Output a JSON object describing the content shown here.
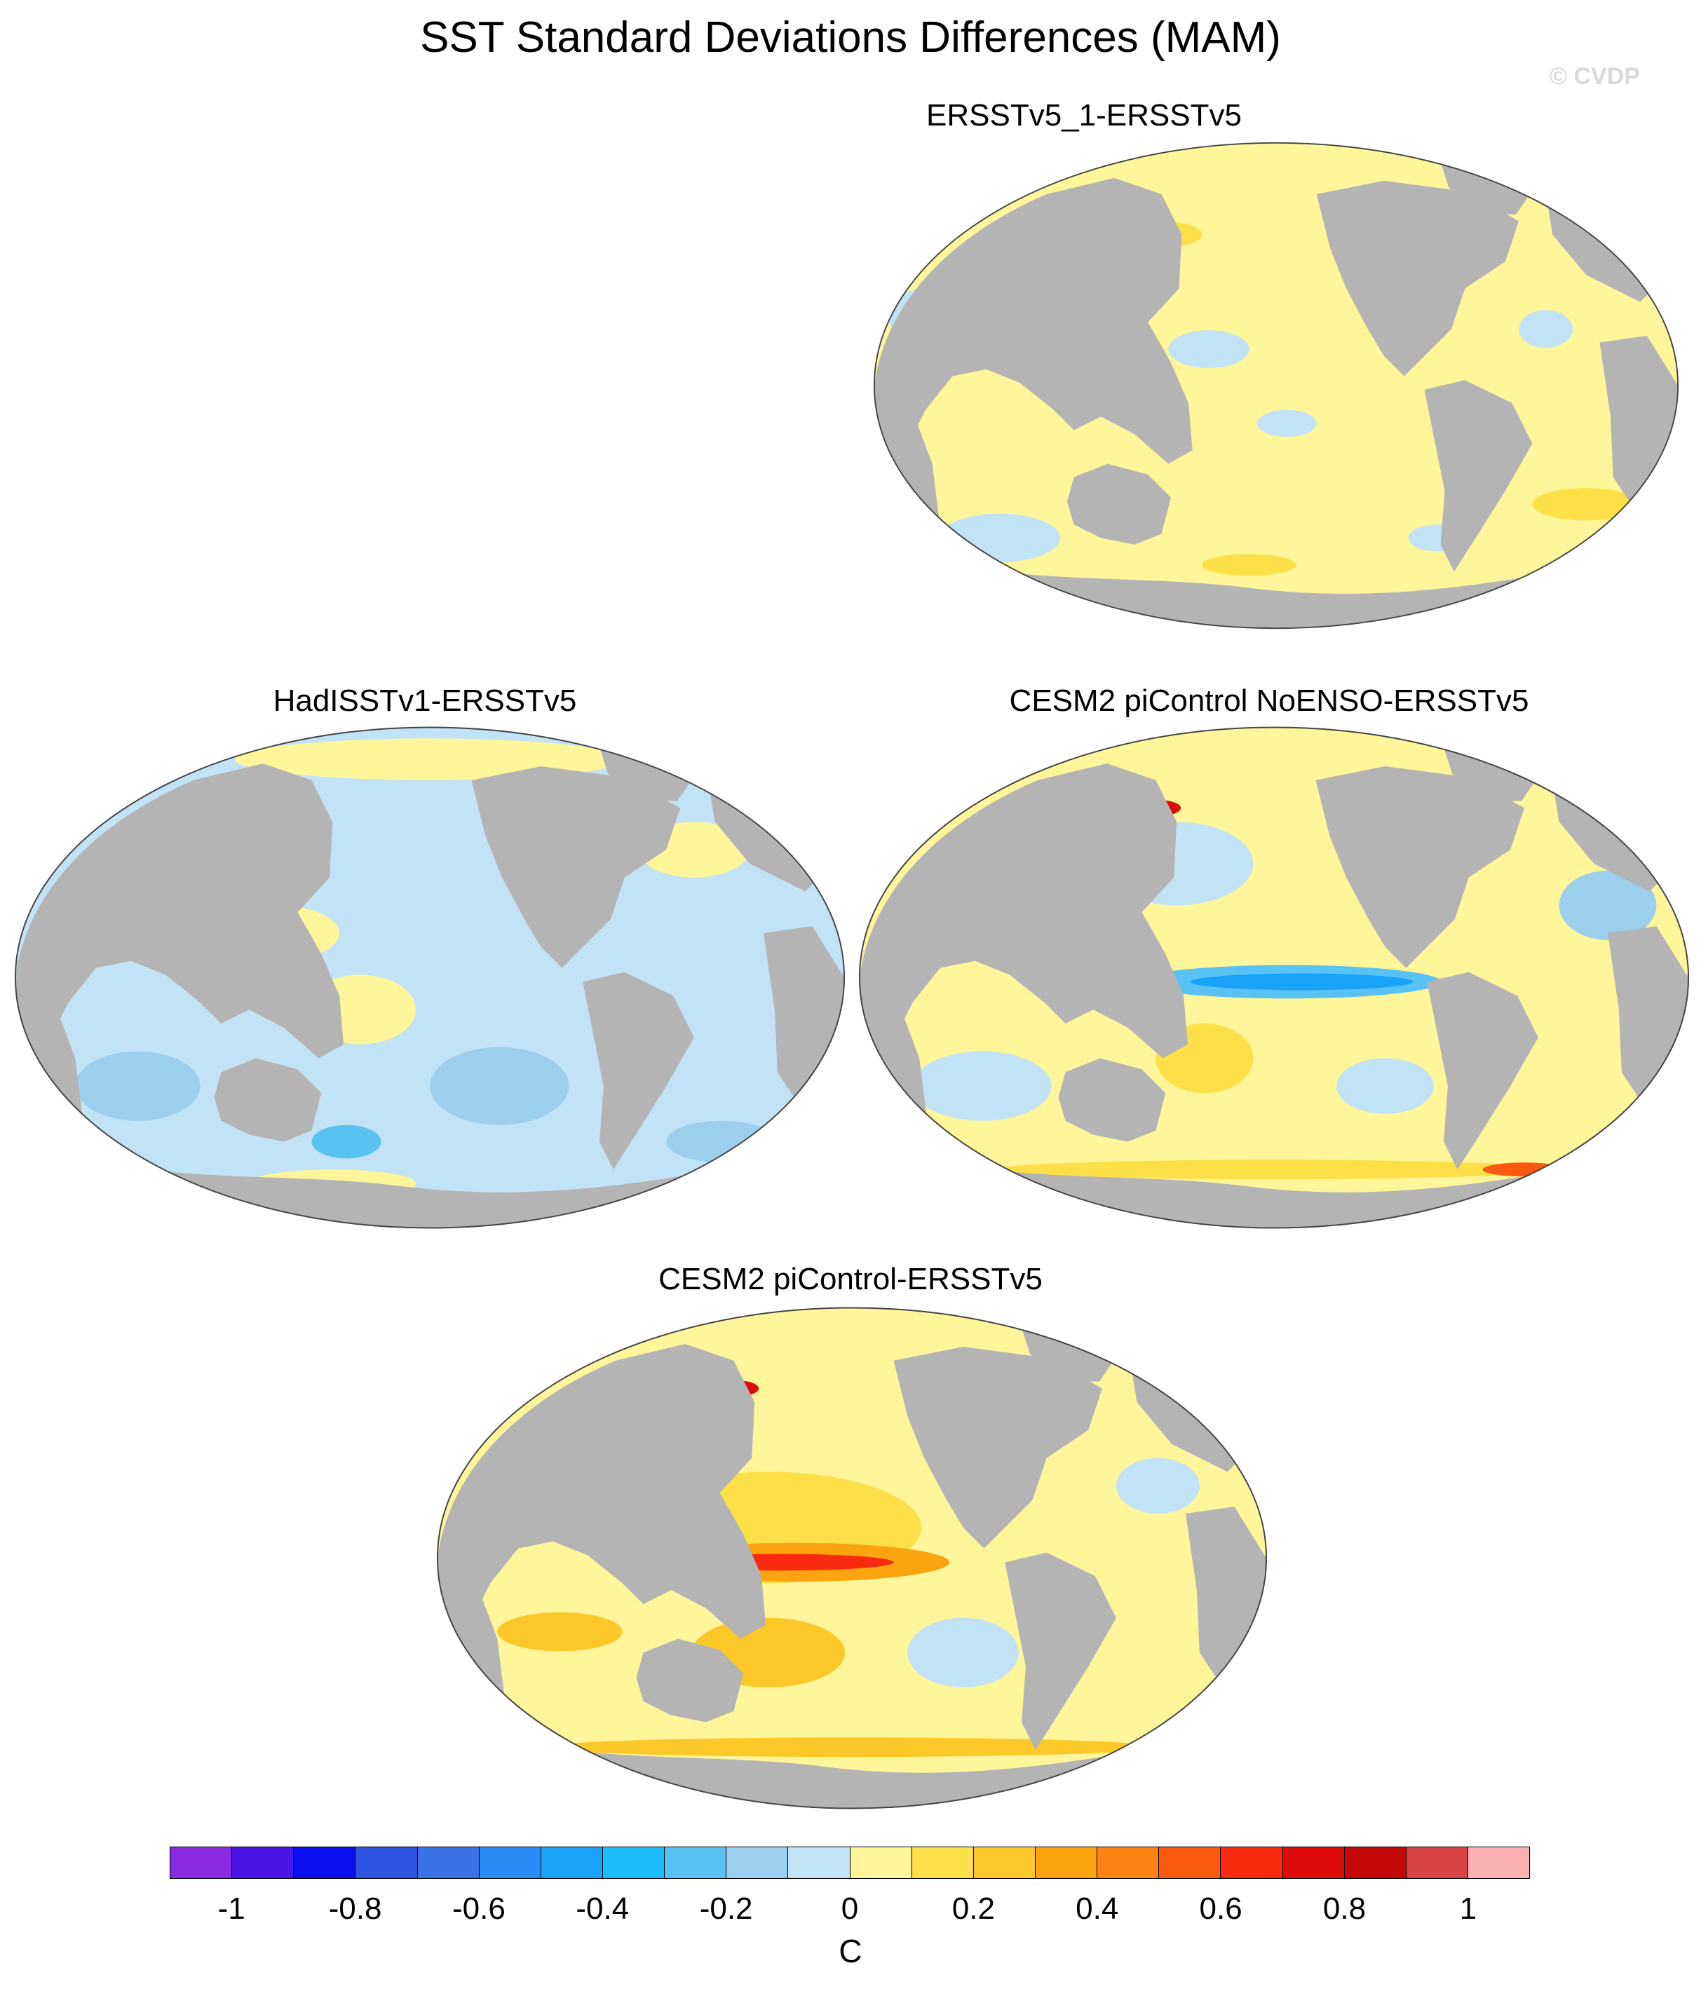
{
  "title": "SST Standard Deviations Differences (MAM)",
  "watermark": "© CVDP",
  "panels": [
    {
      "title": "ERSSTv5_1-ERSSTv5"
    },
    {
      "title": "HadISSTv1-ERSSTv5"
    },
    {
      "title": "CESM2 piControl NoENSO-ERSSTv5"
    },
    {
      "title": "CESM2 piControl-ERSSTv5"
    }
  ],
  "colorbar": {
    "colors": [
      "#8a2be2",
      "#4a16e8",
      "#0a10f0",
      "#2f55e0",
      "#3a73e8",
      "#2a8cf5",
      "#1aa2f8",
      "#1bbdfb",
      "#58c2f2",
      "#9ccfee",
      "#c2e3f5",
      "#fff59a",
      "#fddf47",
      "#fcc728",
      "#fba40f",
      "#fb8213",
      "#fa5a10",
      "#f82b10",
      "#e00b0b",
      "#c30808",
      "#d94545",
      "#fbb1b1"
    ],
    "tick_labels": [
      "-1",
      "-0.8",
      "-0.6",
      "-0.4",
      "-0.2",
      "0",
      "0.2",
      "0.4",
      "0.6",
      "0.8",
      "1"
    ],
    "unit": "C"
  },
  "colors": {
    "land": "#b4b4b4",
    "ocean_neutral": "#fff59a",
    "coast": "#ffffff"
  }
}
